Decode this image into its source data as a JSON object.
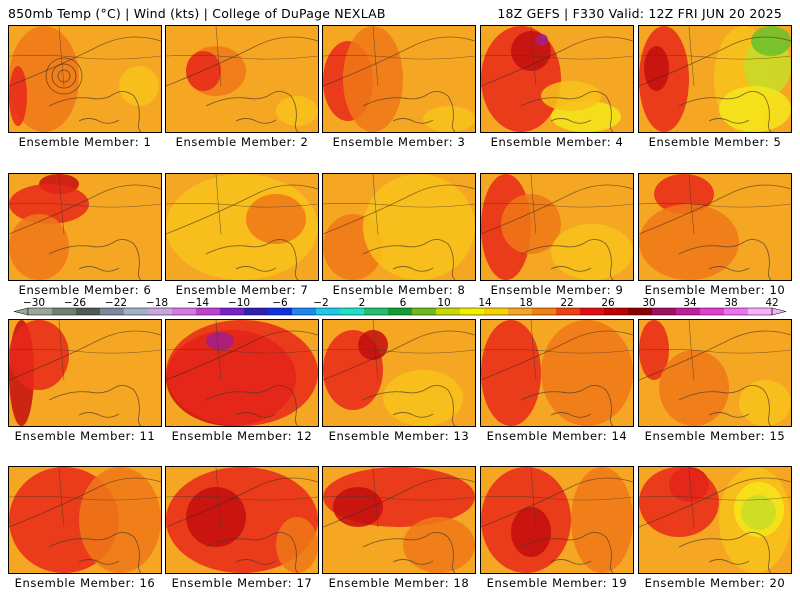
{
  "header": {
    "left": "850mb Temp (°C) | Wind (kts) | College of DuPage NEXLAB",
    "right": "18Z GEFS | F330 Valid: 12Z FRI JUN 20 2025"
  },
  "panels": [
    {
      "label": "Ensemble Member: 1"
    },
    {
      "label": "Ensemble Member: 2"
    },
    {
      "label": "Ensemble Member: 3"
    },
    {
      "label": "Ensemble Member: 4"
    },
    {
      "label": "Ensemble Member: 5"
    },
    {
      "label": "Ensemble Member: 6"
    },
    {
      "label": "Ensemble Member: 7"
    },
    {
      "label": "Ensemble Member: 8"
    },
    {
      "label": "Ensemble Member: 9"
    },
    {
      "label": "Ensemble Member: 10"
    },
    {
      "label": "Ensemble Member: 11"
    },
    {
      "label": "Ensemble Member: 12"
    },
    {
      "label": "Ensemble Member: 13"
    },
    {
      "label": "Ensemble Member: 14"
    },
    {
      "label": "Ensemble Member: 15"
    },
    {
      "label": "Ensemble Member: 16"
    },
    {
      "label": "Ensemble Member: 17"
    },
    {
      "label": "Ensemble Member: 18"
    },
    {
      "label": "Ensemble Member: 19"
    },
    {
      "label": "Ensemble Member: 20"
    }
  ],
  "colorbar": {
    "labels": [
      "−30",
      "−26",
      "−22",
      "−18",
      "−14",
      "−10",
      "−6",
      "−2",
      "2",
      "6",
      "10",
      "14",
      "18",
      "22",
      "26",
      "30",
      "34",
      "38",
      "42"
    ],
    "colors": [
      "#9aa89a",
      "#6f7f70",
      "#4e5a55",
      "#7a8a9a",
      "#9fb0c8",
      "#c8a6e0",
      "#d877e8",
      "#c040d0",
      "#7a20c8",
      "#3020b0",
      "#1030e0",
      "#1e88f0",
      "#20c8f0",
      "#20e0c8",
      "#20c070",
      "#10a030",
      "#70b820",
      "#c8d800",
      "#f0f000",
      "#f8d000",
      "#f5a623",
      "#f08010",
      "#f04010",
      "#e01010",
      "#c00000",
      "#8a0000",
      "#a01060",
      "#c020a0",
      "#e040d0",
      "#f070f0",
      "#f8b0f8"
    ]
  },
  "palette": {
    "orange": "#f5a623",
    "light_orange": "#f8c21a",
    "dark_orange": "#f07818",
    "red": "#e8281a",
    "dark_red": "#c40e0e",
    "yellow": "#f4e61a",
    "yellow_green": "#c8dc28",
    "green": "#6cbf2c",
    "purple": "#a0208c"
  }
}
